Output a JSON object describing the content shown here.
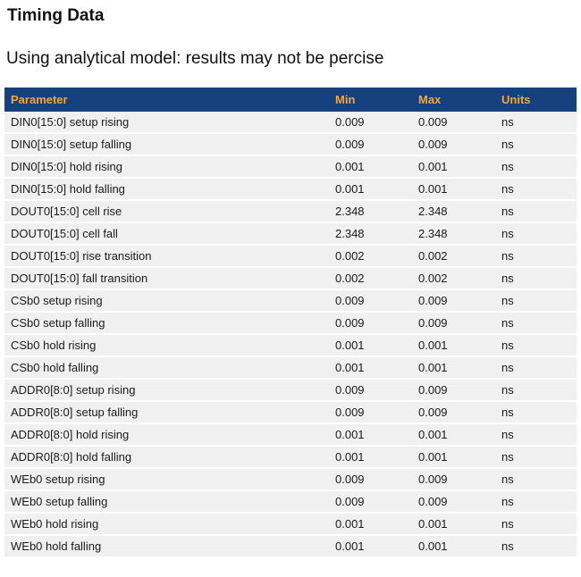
{
  "page": {
    "title": "Timing Data",
    "subtitle": "Using analytical model: results may not be percise"
  },
  "colors": {
    "table_header_bg": "#17417E",
    "table_header_text": "#F0A838",
    "row_bg": "#F0F0F1",
    "row_text": "#1A1A1A",
    "page_bg": "#FFFFFF"
  },
  "table": {
    "columns": [
      "Parameter",
      "Min",
      "Max",
      "Units"
    ],
    "rows": [
      {
        "parameter": "DIN0[15:0] setup rising",
        "min": "0.009",
        "max": "0.009",
        "units": "ns"
      },
      {
        "parameter": "DIN0[15:0] setup falling",
        "min": "0.009",
        "max": "0.009",
        "units": "ns"
      },
      {
        "parameter": "DIN0[15:0] hold rising",
        "min": "0.001",
        "max": "0.001",
        "units": "ns"
      },
      {
        "parameter": "DIN0[15:0] hold falling",
        "min": "0.001",
        "max": "0.001",
        "units": "ns"
      },
      {
        "parameter": "DOUT0[15:0] cell rise",
        "min": "2.348",
        "max": "2.348",
        "units": "ns"
      },
      {
        "parameter": "DOUT0[15:0] cell fall",
        "min": "2.348",
        "max": "2.348",
        "units": "ns"
      },
      {
        "parameter": "DOUT0[15:0] rise transition",
        "min": "0.002",
        "max": "0.002",
        "units": "ns"
      },
      {
        "parameter": "DOUT0[15:0] fall transition",
        "min": "0.002",
        "max": "0.002",
        "units": "ns"
      },
      {
        "parameter": "CSb0 setup rising",
        "min": "0.009",
        "max": "0.009",
        "units": "ns"
      },
      {
        "parameter": "CSb0 setup falling",
        "min": "0.009",
        "max": "0.009",
        "units": "ns"
      },
      {
        "parameter": "CSb0 hold rising",
        "min": "0.001",
        "max": "0.001",
        "units": "ns"
      },
      {
        "parameter": "CSb0 hold falling",
        "min": "0.001",
        "max": "0.001",
        "units": "ns"
      },
      {
        "parameter": "ADDR0[8:0] setup rising",
        "min": "0.009",
        "max": "0.009",
        "units": "ns"
      },
      {
        "parameter": "ADDR0[8:0] setup falling",
        "min": "0.009",
        "max": "0.009",
        "units": "ns"
      },
      {
        "parameter": "ADDR0[8:0] hold rising",
        "min": "0.001",
        "max": "0.001",
        "units": "ns"
      },
      {
        "parameter": "ADDR0[8:0] hold falling",
        "min": "0.001",
        "max": "0.001",
        "units": "ns"
      },
      {
        "parameter": "WEb0 setup rising",
        "min": "0.009",
        "max": "0.009",
        "units": "ns"
      },
      {
        "parameter": "WEb0 setup falling",
        "min": "0.009",
        "max": "0.009",
        "units": "ns"
      },
      {
        "parameter": "WEb0 hold rising",
        "min": "0.001",
        "max": "0.001",
        "units": "ns"
      },
      {
        "parameter": "WEb0 hold falling",
        "min": "0.001",
        "max": "0.001",
        "units": "ns"
      }
    ]
  }
}
